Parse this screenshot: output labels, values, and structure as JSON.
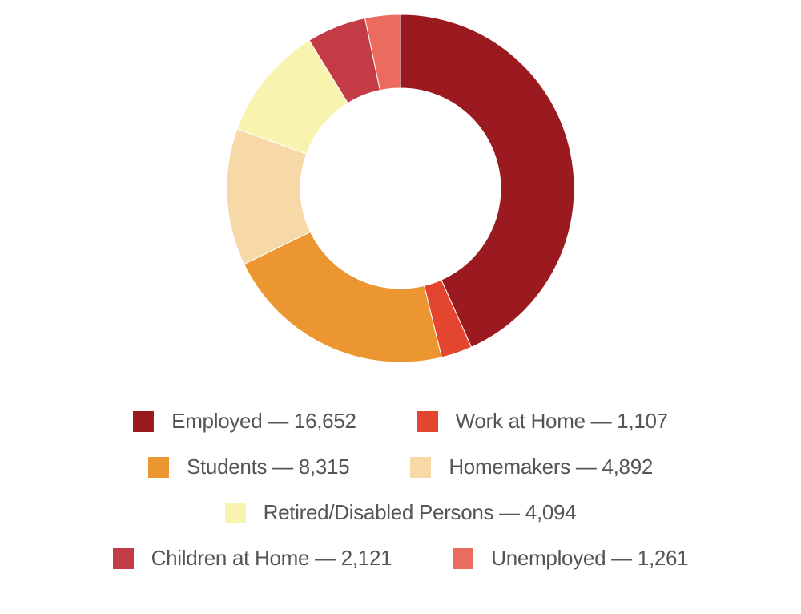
{
  "chart_data": {
    "type": "pie",
    "donut": true,
    "categories": [
      "Employed",
      "Work at Home",
      "Students",
      "Homemakers",
      "Retired/Disabled Persons",
      "Children at Home",
      "Unemployed"
    ],
    "values": [
      16652,
      1107,
      8315,
      4892,
      4094,
      2121,
      1261
    ],
    "colors": [
      "#9b1a1f",
      "#e3452e",
      "#eb9631",
      "#f7d9a8",
      "#f8f4b0",
      "#c23b45",
      "#eb6b5f"
    ],
    "labels": [
      "Employed — 16,652",
      "Work at Home — 1,107",
      "Students — 8,315",
      "Homemakers — 4,892",
      "Retired/Disabled Persons — 4,094",
      "Children at Home — 2,121",
      "Unemployed — 1,261"
    ],
    "legend_position": "bottom"
  }
}
